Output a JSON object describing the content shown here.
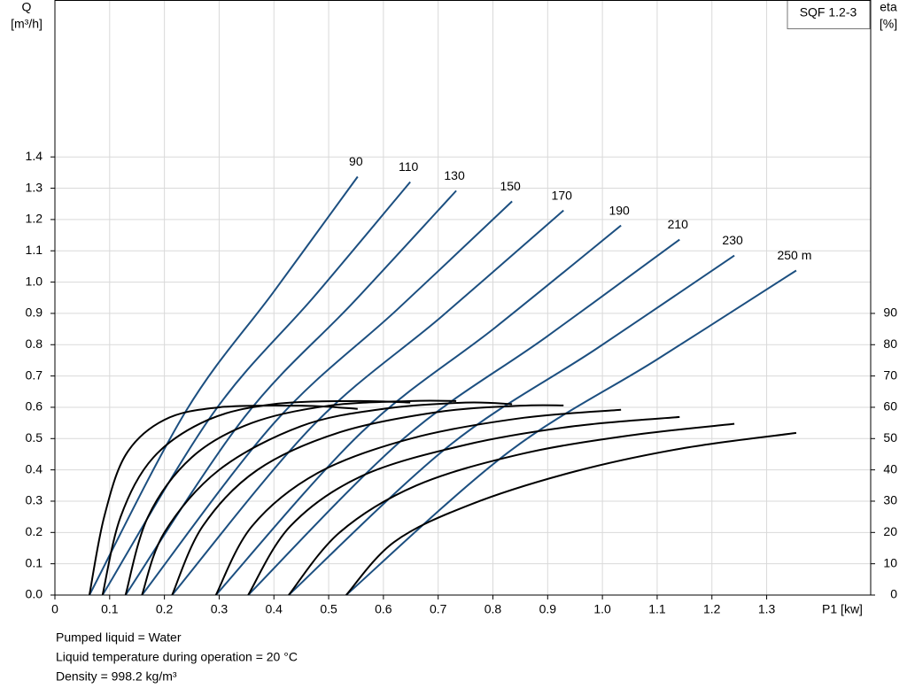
{
  "chart_data": {
    "type": "line",
    "title": "SQF 1.2-3",
    "y_label": "Q",
    "y_unit": "[m³/h]",
    "y2_label": "eta",
    "y2_unit": "[%]",
    "x_label": "P1 [kw]",
    "xlim": [
      0,
      1.49
    ],
    "ylim": [
      0,
      1.9
    ],
    "y2lim": [
      0,
      190
    ],
    "grid": true,
    "xticks": [
      0,
      0.1,
      0.2,
      0.3,
      0.4,
      0.5,
      0.6,
      0.7,
      0.8,
      0.9,
      {
        "value": 1,
        "label": "1.0"
      },
      1.1,
      1.2,
      1.3
    ],
    "yticks": [
      {
        "value": 0,
        "label": "0.0"
      },
      0.1,
      0.2,
      0.3,
      0.4,
      0.5,
      0.6,
      0.7,
      0.8,
      0.9,
      {
        "value": 1,
        "label": "1.0"
      },
      1.1,
      1.2,
      1.3,
      1.4
    ],
    "y2ticks": [
      0,
      10,
      20,
      30,
      40,
      50,
      60,
      70,
      80,
      90
    ],
    "series": [
      {
        "name": "90",
        "color": "#1c4f80",
        "x": [
          0.063,
          0.24,
          0.4,
          0.553
        ],
        "values": [
          0,
          0.59,
          0.97,
          1.337
        ]
      },
      {
        "name": "110",
        "color": "#1c4f80",
        "x": [
          0.087,
          0.289,
          0.475,
          0.649
        ],
        "values": [
          0,
          0.581,
          0.957,
          1.32
        ]
      },
      {
        "name": "130",
        "color": "#1c4f80",
        "x": [
          0.129,
          0.346,
          0.546,
          0.733
        ],
        "values": [
          0,
          0.568,
          0.937,
          1.292
        ]
      },
      {
        "name": "150",
        "color": "#1c4f80",
        "x": [
          0.159,
          0.402,
          0.625,
          0.835
        ],
        "values": [
          0,
          0.553,
          0.912,
          1.258
        ]
      },
      {
        "name": "170",
        "color": "#1c4f80",
        "x": [
          0.214,
          0.471,
          0.707,
          0.929
        ],
        "values": [
          0,
          0.541,
          0.891,
          1.229
        ]
      },
      {
        "name": "190",
        "color": "#1c4f80",
        "x": [
          0.294,
          0.56,
          0.805,
          1.034
        ],
        "values": [
          0,
          0.52,
          0.856,
          1.181
        ]
      },
      {
        "name": "210",
        "color": "#1c4f80",
        "x": [
          0.353,
          0.637,
          0.897,
          1.141
        ],
        "values": [
          0,
          0.5,
          0.824,
          1.136
        ]
      },
      {
        "name": "230",
        "color": "#1c4f80",
        "x": [
          0.427,
          0.72,
          0.989,
          1.241
        ],
        "values": [
          0,
          0.477,
          0.787,
          1.085
        ]
      },
      {
        "name": "250 m",
        "color": "#1c4f80",
        "x": [
          0.532,
          0.828,
          1.099,
          1.354
        ],
        "values": [
          0,
          0.456,
          0.752,
          1.037
        ]
      },
      {
        "color": "#000000",
        "axis": "y2",
        "x": [
          0.063,
          0.09,
          0.13,
          0.2,
          0.3,
          0.45,
          0.553
        ],
        "values": [
          0,
          25,
          45,
          56,
          60,
          60.5,
          59.5
        ]
      },
      {
        "color": "#000000",
        "axis": "y2",
        "x": [
          0.087,
          0.12,
          0.18,
          0.28,
          0.4,
          0.55,
          0.649
        ],
        "values": [
          0,
          25,
          44,
          56,
          61,
          62,
          61.5
        ]
      },
      {
        "color": "#000000",
        "axis": "y2",
        "x": [
          0.129,
          0.17,
          0.25,
          0.36,
          0.5,
          0.65,
          0.733
        ],
        "values": [
          0,
          25,
          44,
          55,
          60.5,
          62,
          62
        ]
      },
      {
        "color": "#000000",
        "axis": "y2",
        "x": [
          0.159,
          0.2,
          0.3,
          0.45,
          0.6,
          0.75,
          0.835
        ],
        "values": [
          0,
          20,
          40,
          54,
          59.5,
          61.5,
          61
        ]
      },
      {
        "color": "#000000",
        "axis": "y2",
        "x": [
          0.214,
          0.27,
          0.37,
          0.52,
          0.7,
          0.85,
          0.929
        ],
        "values": [
          0,
          22,
          40,
          52,
          58.5,
          60.5,
          60.6
        ]
      },
      {
        "color": "#000000",
        "axis": "y2",
        "x": [
          0.294,
          0.36,
          0.48,
          0.65,
          0.85,
          1.034
        ],
        "values": [
          0,
          22,
          39,
          50,
          56.5,
          59.2
        ]
      },
      {
        "color": "#000000",
        "axis": "y2",
        "x": [
          0.353,
          0.43,
          0.56,
          0.75,
          0.95,
          1.141
        ],
        "values": [
          0,
          22,
          38,
          48,
          54,
          56.9
        ]
      },
      {
        "color": "#000000",
        "axis": "y2",
        "x": [
          0.427,
          0.52,
          0.66,
          0.85,
          1.05,
          1.241
        ],
        "values": [
          0,
          20,
          35,
          45,
          51,
          54.7
        ]
      },
      {
        "color": "#000000",
        "axis": "y2",
        "x": [
          0.532,
          0.62,
          0.76,
          0.95,
          1.15,
          1.354
        ],
        "values": [
          0,
          17,
          29,
          39.5,
          47,
          51.8
        ]
      }
    ],
    "notes": [
      "Pumped liquid = Water",
      "Liquid temperature during operation = 20 °C",
      "Density = 998.2 kg/m³"
    ]
  }
}
